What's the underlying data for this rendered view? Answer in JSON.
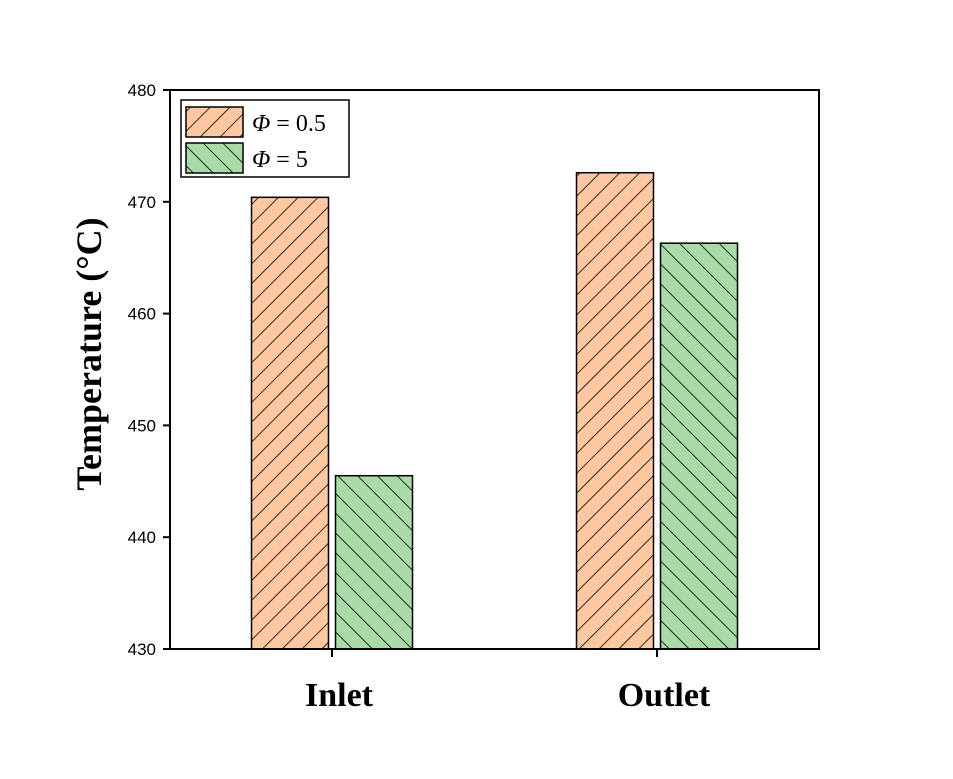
{
  "chart_data": {
    "type": "bar",
    "categories": [
      "Inlet",
      "Outlet"
    ],
    "series": [
      {
        "name_symbol": "Φ",
        "name_rest": " = 0.5",
        "values": [
          470.4,
          472.6
        ],
        "fill": "#FFC8A0",
        "hatch": "forward"
      },
      {
        "name_symbol": "Φ",
        "name_rest": " = 5",
        "values": [
          445.5,
          466.3
        ],
        "fill": "#A8DBA8",
        "hatch": "back"
      }
    ],
    "xlabel": "",
    "ylabel": "Temperature (°C)",
    "ylim": [
      430,
      480
    ],
    "yticks": [
      430,
      440,
      450,
      460,
      470,
      480
    ],
    "legend_position": "top-left",
    "grid": false
  }
}
